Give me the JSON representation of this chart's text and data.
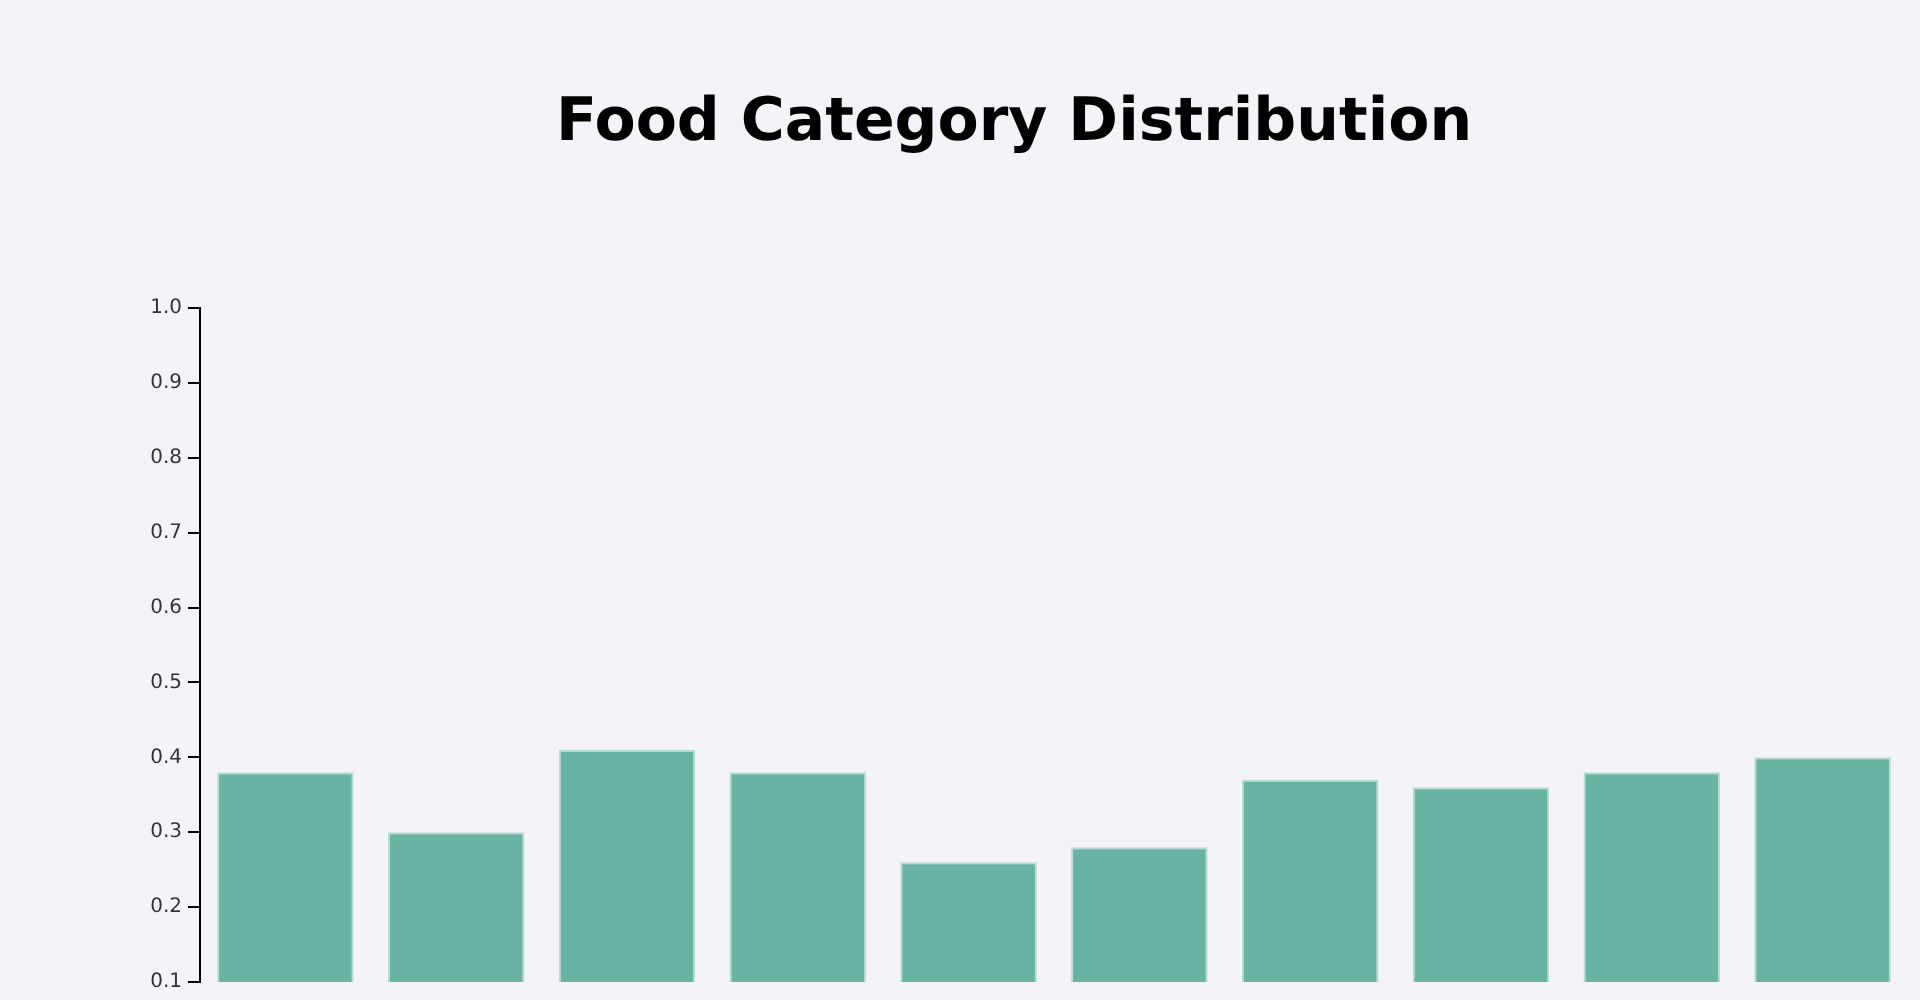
{
  "chart_data": {
    "type": "bar",
    "title": "Food Category Distribution",
    "categories": [
      null,
      null,
      null,
      null,
      null,
      null,
      null,
      null,
      null,
      null
    ],
    "values": [
      0.38,
      0.3,
      0.41,
      0.38,
      0.26,
      0.28,
      0.37,
      0.36,
      0.38,
      0.4
    ],
    "color": "#69b3a2",
    "ylim": [
      0.1,
      1.0
    ],
    "yticks": [
      0.1,
      0.2,
      0.3,
      0.4,
      0.5,
      0.6,
      0.7,
      0.8,
      0.9,
      {
        "value": 1.0,
        "label": "1.0"
      }
    ],
    "grid": false
  }
}
